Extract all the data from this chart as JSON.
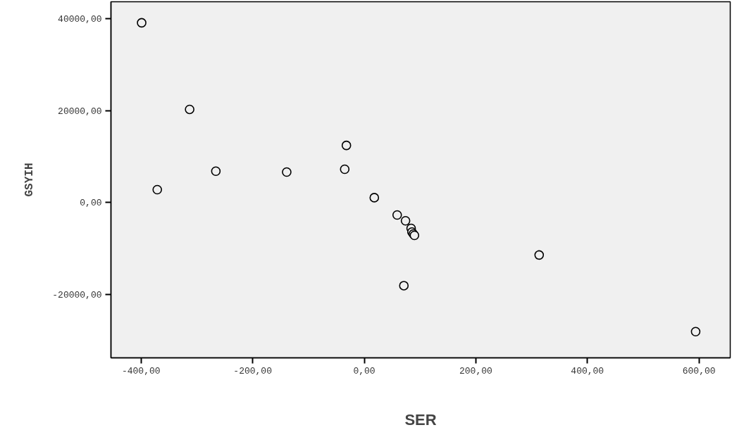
{
  "chart_data": {
    "type": "scatter",
    "xlabel": "SER",
    "ylabel": "GSYIH",
    "x": [
      -399,
      -371,
      -313,
      -266,
      -139,
      -35,
      -32,
      18,
      59,
      74,
      84,
      85.5,
      88,
      90,
      71,
      313.5,
      594
    ],
    "values": [
      39100,
      2760,
      20240,
      6780,
      6590,
      7200,
      12390,
      1010,
      -2760,
      -4020,
      -5670,
      -6480,
      -6900,
      -7200,
      -18150,
      -11470,
      -28160
    ],
    "color": "#000000",
    "marker": "circle",
    "grid": false,
    "legend": false,
    "xlim": [
      -454,
      656
    ],
    "ylim": [
      -33870,
      43680
    ],
    "xticks": [
      {
        "value": -400,
        "label": "-400,00"
      },
      {
        "value": -200,
        "label": "-200,00"
      },
      {
        "value": 0,
        "label": "0,00"
      },
      {
        "value": 200,
        "label": "200,00"
      },
      {
        "value": 400,
        "label": "400,00"
      },
      {
        "value": 600,
        "label": "600,00"
      }
    ],
    "yticks": [
      {
        "value": -20000,
        "label": "-20000,00"
      },
      {
        "value": 0,
        "label": "0,00"
      },
      {
        "value": 20000,
        "label": "20000,00"
      },
      {
        "value": 40000,
        "label": "40000,00"
      }
    ]
  }
}
